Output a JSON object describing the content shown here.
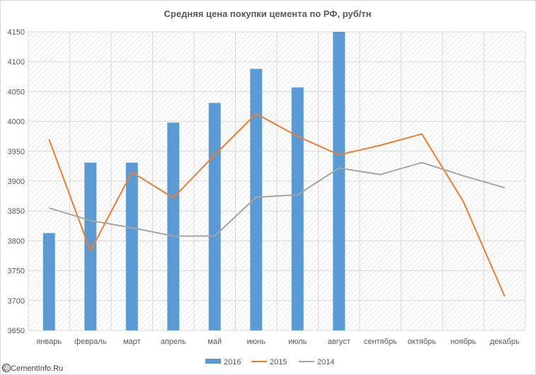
{
  "chart_data": {
    "type": "bar",
    "title": "Средняя цена покупки цемента по РФ, руб/тн",
    "xlabel": "",
    "ylabel": "",
    "categories": [
      "январь",
      "февраль",
      "март",
      "апрель",
      "май",
      "июнь",
      "июль",
      "август",
      "сентябрь",
      "октябрь",
      "ноябрь",
      "декабрь"
    ],
    "ylim": [
      3650,
      4150
    ],
    "yticks": [
      3650,
      3700,
      3750,
      3800,
      3850,
      3900,
      3950,
      4000,
      4050,
      4100,
      4150
    ],
    "grid": true,
    "legend_position": "bottom",
    "series": [
      {
        "name": "2016",
        "type": "bar",
        "color": "#5b9bd5",
        "values": [
          3813,
          3931,
          3931,
          3998,
          4031,
          4088,
          4057,
          4150,
          null,
          null,
          null,
          null
        ]
      },
      {
        "name": "2015",
        "type": "line",
        "color": "#ed7d31",
        "values": [
          3970,
          3783,
          3915,
          3872,
          3944,
          4013,
          3975,
          3944,
          3960,
          3979,
          3866,
          3707
        ]
      },
      {
        "name": "2014",
        "type": "line",
        "color": "#a5a5a5",
        "values": [
          3855,
          3834,
          3822,
          3808,
          3808,
          3873,
          3877,
          3922,
          3911,
          3931,
          3909,
          3889
        ]
      }
    ]
  },
  "watermark": {
    "text": "© CementInfo.Ru"
  }
}
